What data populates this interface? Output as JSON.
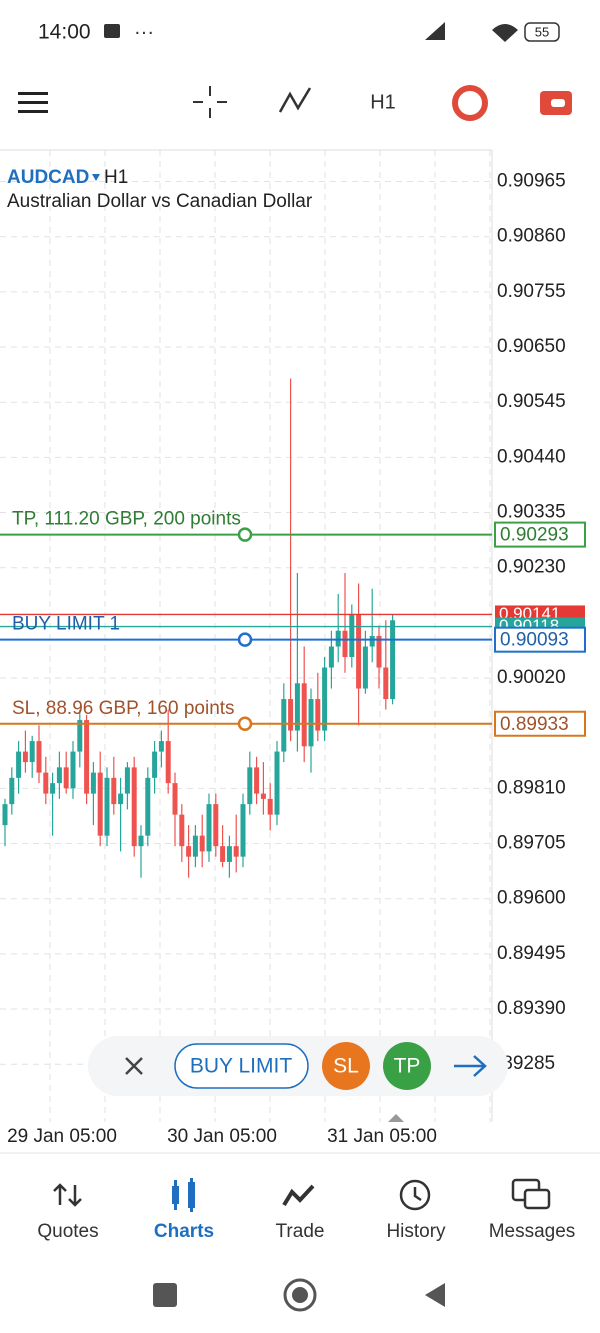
{
  "status_bar": {
    "time": "14:00",
    "battery": "55"
  },
  "toolbar": {
    "timeframe": "H1"
  },
  "chart": {
    "symbol": "AUDCAD",
    "timeframe": "H1",
    "description": "Australian Dollar vs Canadian Dollar",
    "type": "candlestick",
    "up_color": "#26a69a",
    "down_color": "#ef5350",
    "ylim": [
      0.89175,
      0.91025
    ],
    "yticks": [
      {
        "value": 0.90965,
        "label": "0.90965"
      },
      {
        "value": 0.9086,
        "label": "0.90860"
      },
      {
        "value": 0.90755,
        "label": "0.90755"
      },
      {
        "value": 0.9065,
        "label": "0.90650"
      },
      {
        "value": 0.90545,
        "label": "0.90545"
      },
      {
        "value": 0.9044,
        "label": "0.90440"
      },
      {
        "value": 0.90335,
        "label": "0.90335"
      },
      {
        "value": 0.9023,
        "label": "0.90230"
      },
      {
        "value": 0.9002,
        "label": "0.90020"
      },
      {
        "value": 0.8981,
        "label": "0.89810"
      },
      {
        "value": 0.89705,
        "label": "0.89705"
      },
      {
        "value": 0.896,
        "label": "0.89600"
      },
      {
        "value": 0.89495,
        "label": "0.89495"
      },
      {
        "value": 0.8939,
        "label": "0.89390"
      },
      {
        "value": 0.89285,
        "label": ".89285"
      }
    ],
    "xtick_labels": [
      "29 Jan 05:00",
      "30 Jan 05:00",
      "31 Jan 05:00"
    ],
    "open": [
      0.8974,
      0.8978,
      0.8983,
      0.8988,
      0.8986,
      0.899,
      0.8984,
      0.898,
      0.8982,
      0.8985,
      0.8981,
      0.8988,
      0.8994,
      0.898,
      0.8984,
      0.8972,
      0.8983,
      0.8978,
      0.898,
      0.8985,
      0.897,
      0.8972,
      0.8983,
      0.8988,
      0.899,
      0.8982,
      0.8976,
      0.897,
      0.8968,
      0.8972,
      0.8969,
      0.8978,
      0.897,
      0.8967,
      0.897,
      0.8968,
      0.8978,
      0.8985,
      0.898,
      0.8979,
      0.8976,
      0.8988,
      0.8998,
      0.8992,
      0.9001,
      0.8989,
      0.8998,
      0.8992,
      0.9004,
      0.9008,
      0.9011,
      0.9006,
      0.9014,
      0.9,
      0.9008,
      0.901,
      0.9004,
      0.8998
    ],
    "high": [
      0.8979,
      0.8985,
      0.899,
      0.8992,
      0.8991,
      0.8993,
      0.8987,
      0.8984,
      0.8988,
      0.8988,
      0.899,
      0.8996,
      0.8995,
      0.8986,
      0.8988,
      0.8985,
      0.8987,
      0.8983,
      0.8986,
      0.8987,
      0.8974,
      0.8985,
      0.899,
      0.8992,
      0.8996,
      0.8984,
      0.8978,
      0.8974,
      0.8974,
      0.8976,
      0.898,
      0.898,
      0.8974,
      0.8972,
      0.8976,
      0.898,
      0.8988,
      0.8987,
      0.8986,
      0.8982,
      0.899,
      0.9001,
      0.9059,
      0.9022,
      0.9008,
      0.9,
      0.9003,
      0.9006,
      0.9011,
      0.9018,
      0.9022,
      0.9016,
      0.902,
      0.9011,
      0.9019,
      0.9012,
      0.9013,
      0.9014
    ],
    "low": [
      0.897,
      0.8976,
      0.898,
      0.8984,
      0.8983,
      0.8982,
      0.8978,
      0.8972,
      0.8979,
      0.898,
      0.8979,
      0.8985,
      0.8978,
      0.8974,
      0.897,
      0.897,
      0.8976,
      0.8969,
      0.8977,
      0.8968,
      0.8964,
      0.897,
      0.898,
      0.8985,
      0.898,
      0.897,
      0.8967,
      0.8964,
      0.8966,
      0.8966,
      0.8967,
      0.8968,
      0.8966,
      0.8964,
      0.8965,
      0.8966,
      0.8976,
      0.8978,
      0.8976,
      0.8973,
      0.8974,
      0.8986,
      0.899,
      0.8988,
      0.8986,
      0.8984,
      0.899,
      0.899,
      0.9,
      0.9005,
      0.9003,
      0.9004,
      0.8993,
      0.8999,
      0.9005,
      0.9,
      0.8996,
      0.8997
    ],
    "close": [
      0.8978,
      0.8983,
      0.8988,
      0.8986,
      0.899,
      0.8984,
      0.898,
      0.8982,
      0.8985,
      0.8981,
      0.8988,
      0.8994,
      0.898,
      0.8984,
      0.8972,
      0.8983,
      0.8978,
      0.898,
      0.8985,
      0.897,
      0.8972,
      0.8983,
      0.8988,
      0.899,
      0.8982,
      0.8976,
      0.897,
      0.8968,
      0.8972,
      0.8969,
      0.8978,
      0.897,
      0.8967,
      0.897,
      0.8968,
      0.8978,
      0.8985,
      0.898,
      0.8979,
      0.8976,
      0.8988,
      0.8998,
      0.8992,
      0.9001,
      0.8989,
      0.8998,
      0.8992,
      0.9004,
      0.9008,
      0.9011,
      0.9006,
      0.9014,
      0.9,
      0.9008,
      0.901,
      0.9004,
      0.8998,
      0.9013
    ],
    "ask": 0.90141,
    "bid": 0.90118,
    "ask_color": "#e53935",
    "bid_color": "#26a69a",
    "levels": [
      {
        "name": "TP, 111.20 GBP, 200 points",
        "price": 0.90293,
        "color": "#3aa046",
        "text_color": "#2f7d32"
      },
      {
        "name": "BUY LIMIT 1",
        "price": 0.90093,
        "color": "#1e6fd0",
        "text_color": "#1f5faa"
      },
      {
        "name": "SL, 88.96 GBP, 160 points",
        "price": 0.89933,
        "color": "#d8761e",
        "text_color": "#a0522d"
      }
    ]
  },
  "order_bar": {
    "type": "BUY LIMIT",
    "sl": "SL",
    "tp": "TP"
  },
  "nav": [
    "Quotes",
    "Charts",
    "Trade",
    "History",
    "Messages"
  ]
}
